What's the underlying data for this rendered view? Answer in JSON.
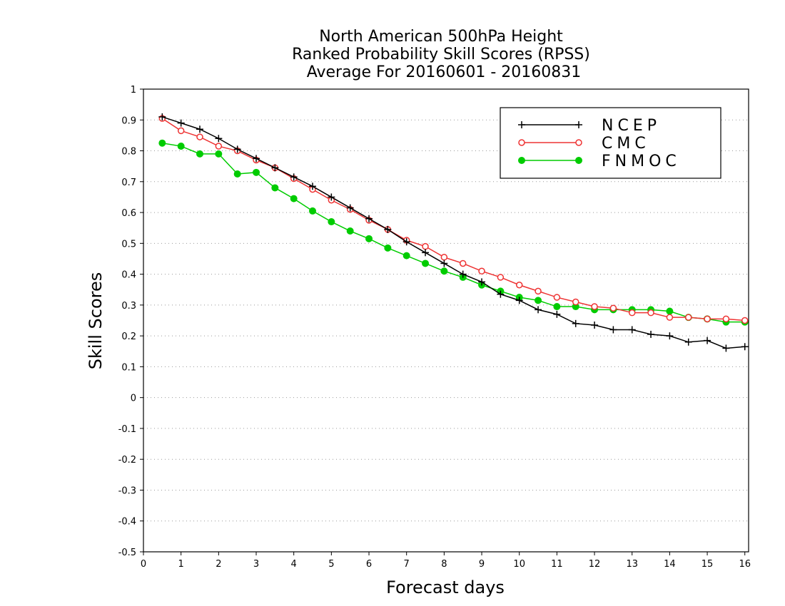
{
  "chart_data": {
    "type": "line",
    "title": [
      "North American 500hPa Height",
      "Ranked Probability Skill Scores (RPSS)",
      "Average For 20160601 - 20160831"
    ],
    "xlabel": "Forecast days",
    "ylabel": "Skill Scores",
    "xlim": [
      0,
      16.1
    ],
    "ylim": [
      -0.5,
      1
    ],
    "xticks": [
      0,
      1,
      2,
      3,
      4,
      5,
      6,
      7,
      8,
      9,
      10,
      11,
      12,
      13,
      14,
      15,
      16
    ],
    "yticks": [
      -0.5,
      -0.4,
      -0.3,
      -0.2,
      -0.1,
      0,
      0.1,
      0.2,
      0.3,
      0.4,
      0.5,
      0.6,
      0.7,
      0.8,
      0.9,
      1
    ],
    "ytick_labels": [
      "-0.5",
      "-0.4",
      "-0.3",
      "-0.2",
      "-0.1",
      "0",
      "0.1",
      "0.2",
      "0.3",
      "0.4",
      "0.5",
      "0.6",
      "0.7",
      "0.8",
      "0.9",
      "1"
    ],
    "grid": "horizontal dotted",
    "legend_position": "top-right",
    "x": [
      0.5,
      1,
      1.5,
      2,
      2.5,
      3,
      3.5,
      4,
      4.5,
      5,
      5.5,
      6,
      6.5,
      7,
      7.5,
      8,
      8.5,
      9,
      9.5,
      10,
      10.5,
      11,
      11.5,
      12,
      12.5,
      13,
      13.5,
      14,
      14.5,
      15,
      15.5,
      16
    ],
    "series": [
      {
        "name": "NCEP",
        "color": "#000000",
        "marker": "plus",
        "values": [
          0.91,
          0.89,
          0.87,
          0.84,
          0.805,
          0.775,
          0.745,
          0.715,
          0.685,
          0.65,
          0.615,
          0.58,
          0.545,
          0.505,
          0.47,
          0.435,
          0.4,
          0.375,
          0.335,
          0.315,
          0.285,
          0.27,
          0.24,
          0.235,
          0.22,
          0.22,
          0.205,
          0.2,
          0.18,
          0.185,
          0.16,
          0.165
        ]
      },
      {
        "name": "CMC",
        "color": "#ee3333",
        "marker": "open-circle",
        "values": [
          0.905,
          0.865,
          0.845,
          0.815,
          0.8,
          0.77,
          0.745,
          0.71,
          0.675,
          0.64,
          0.61,
          0.575,
          0.545,
          0.51,
          0.49,
          0.455,
          0.435,
          0.41,
          0.39,
          0.365,
          0.345,
          0.325,
          0.31,
          0.295,
          0.29,
          0.275,
          0.275,
          0.26,
          0.26,
          0.255,
          0.255,
          0.25
        ]
      },
      {
        "name": "FNMOC",
        "color": "#00cc00",
        "marker": "filled-circle",
        "values": [
          0.825,
          0.815,
          0.79,
          0.79,
          0.725,
          0.73,
          0.68,
          0.645,
          0.605,
          0.57,
          0.54,
          0.515,
          0.485,
          0.46,
          0.435,
          0.41,
          0.39,
          0.365,
          0.345,
          0.325,
          0.315,
          0.295,
          0.295,
          0.285,
          0.285,
          0.285,
          0.285,
          0.28,
          0.26,
          0.255,
          0.245,
          0.245
        ]
      }
    ]
  }
}
